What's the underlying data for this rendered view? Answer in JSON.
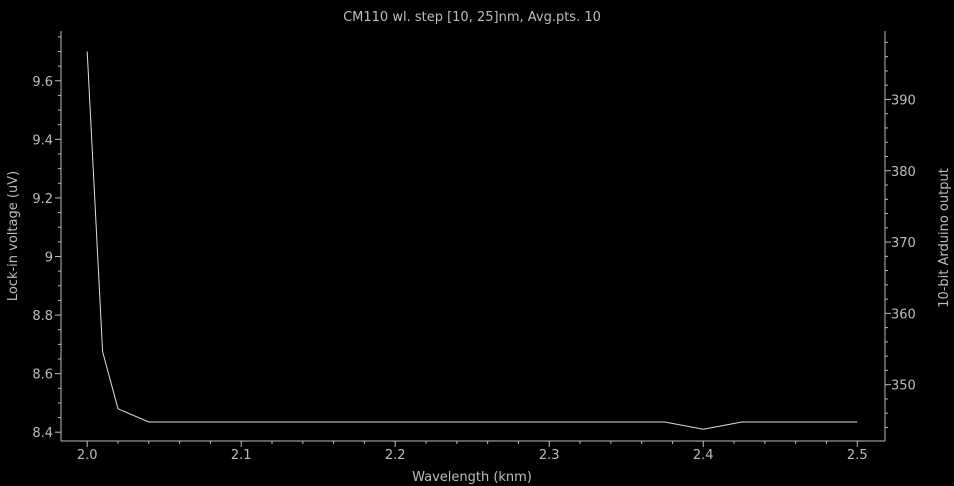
{
  "colors": {
    "background": "#000000",
    "axis": "#bdbdbd",
    "text": "#bdbdbd",
    "series": "#e0e0e0"
  },
  "chart_data": {
    "type": "line",
    "title": "CM110 wl. step [10, 25]nm, Avg.pts. 10",
    "xlabel": "Wavelength (knm)",
    "ylabel": "Lock-in voltage (uV)",
    "y2label": "10-bit Arduino output",
    "xlim": [
      1.983,
      2.518
    ],
    "ylim": [
      8.37,
      9.77
    ],
    "y2lim": [
      342.1,
      399.6
    ],
    "x_ticks": [
      "2.0",
      "2.1",
      "2.2",
      "2.3",
      "2.4",
      "2.5"
    ],
    "y_ticks": [
      "8.4",
      "8.6",
      "8.8",
      "9",
      "9.2",
      "9.4",
      "9.6"
    ],
    "y2_ticks": [
      "350",
      "360",
      "370",
      "380",
      "390"
    ],
    "grid": false,
    "series": [
      {
        "axis": "left",
        "x": [
          2.0,
          2.01,
          2.02,
          2.04,
          2.375,
          2.4,
          2.425,
          2.5
        ],
        "y": [
          9.7,
          8.675,
          8.48,
          8.435,
          8.435,
          8.41,
          8.435,
          8.435
        ]
      }
    ]
  }
}
